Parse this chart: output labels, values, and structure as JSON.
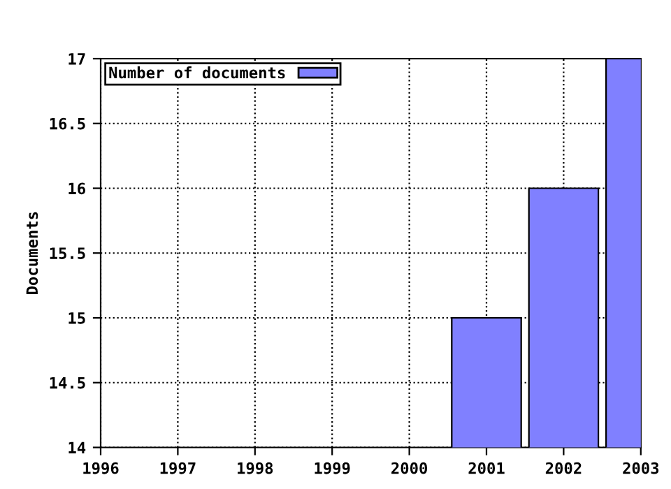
{
  "chart_data": {
    "type": "bar",
    "ylabel": "Documents",
    "x": [
      2001,
      2002,
      2003
    ],
    "series": [
      {
        "name": "Number of documents",
        "color": "#8080ff",
        "values": [
          15,
          16,
          17
        ]
      }
    ],
    "xlim": [
      1996,
      2003
    ],
    "xticks": [
      1996,
      1997,
      1998,
      1999,
      2000,
      2001,
      2002,
      2003
    ],
    "ylim": [
      14,
      17
    ],
    "yticks": [
      14,
      14.5,
      15,
      15.5,
      16,
      16.5,
      17
    ],
    "grid": true,
    "legend": "top left",
    "line_style": "dotted"
  }
}
